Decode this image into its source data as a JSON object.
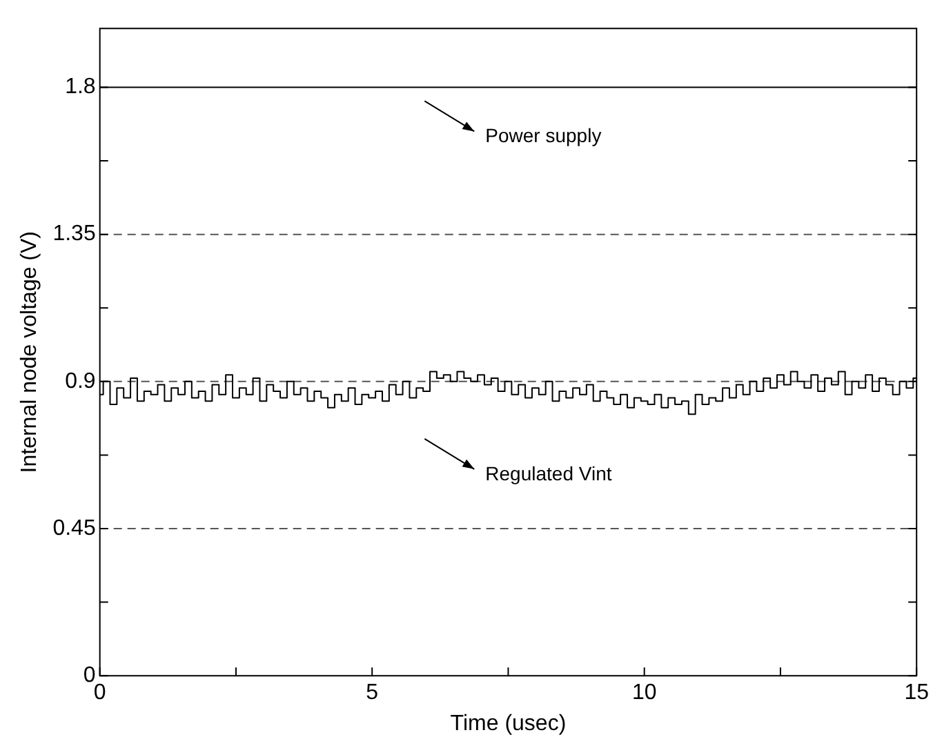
{
  "chart_data": {
    "type": "line",
    "xlabel": "Time (usec)",
    "ylabel": "Internal node voltage (V)",
    "xlim": [
      0,
      15
    ],
    "xticks": [
      0,
      {
        "value": 2.5,
        "label": null
      },
      5,
      {
        "value": 7.5,
        "label": null
      },
      10,
      {
        "value": 12.5,
        "label": null
      },
      15
    ],
    "ylim": [
      0,
      1.98
    ],
    "yticks": [
      0,
      {
        "value": 0.225,
        "label": null
      },
      0.45,
      {
        "value": 0.675,
        "label": null
      },
      0.9,
      {
        "value": 1.125,
        "label": null
      },
      1.35,
      {
        "value": 1.575,
        "label": null
      },
      1.8
    ],
    "grid": false,
    "legend": false,
    "marker": "none",
    "series": [
      {
        "color": "#000000",
        "x": [
          0,
          15
        ],
        "values": [
          1.8,
          1.8
        ]
      },
      {
        "type": "step",
        "color": "#000000",
        "x": [
          0,
          0.125,
          0.25,
          0.375,
          0.5,
          0.625,
          0.75,
          0.875,
          1,
          1.125,
          1.25,
          1.375,
          1.5,
          1.625,
          1.75,
          1.875,
          2,
          2.125,
          2.25,
          2.375,
          2.5,
          2.625,
          2.75,
          2.875,
          3,
          3.125,
          3.25,
          3.375,
          3.5,
          3.625,
          3.75,
          3.875,
          4,
          4.125,
          4.25,
          4.375,
          4.5,
          4.625,
          4.75,
          4.875,
          5,
          5.125,
          5.25,
          5.375,
          5.5,
          5.625,
          5.75,
          5.875,
          6,
          6.125,
          6.25,
          6.375,
          6.5,
          6.625,
          6.75,
          6.875,
          7,
          7.125,
          7.25,
          7.375,
          7.5,
          7.625,
          7.75,
          7.875,
          8,
          8.125,
          8.25,
          8.375,
          8.5,
          8.625,
          8.75,
          8.875,
          9,
          9.125,
          9.25,
          9.375,
          9.5,
          9.625,
          9.75,
          9.875,
          10,
          10.125,
          10.25,
          10.375,
          10.5,
          10.625,
          10.75,
          10.875,
          11,
          11.125,
          11.25,
          11.375,
          11.5,
          11.625,
          11.75,
          11.875,
          12,
          12.125,
          12.25,
          12.375,
          12.5,
          12.625,
          12.75,
          12.875,
          13,
          13.125,
          13.25,
          13.375,
          13.5,
          13.625,
          13.75,
          13.875,
          14,
          14.125,
          14.25,
          14.375,
          14.5,
          14.625,
          14.75,
          14.875,
          15
        ],
        "values": [
          0.86,
          0.9,
          0.83,
          0.88,
          0.85,
          0.91,
          0.84,
          0.87,
          0.86,
          0.89,
          0.84,
          0.88,
          0.86,
          0.9,
          0.85,
          0.87,
          0.84,
          0.89,
          0.86,
          0.92,
          0.85,
          0.88,
          0.86,
          0.91,
          0.84,
          0.89,
          0.87,
          0.85,
          0.9,
          0.86,
          0.88,
          0.84,
          0.87,
          0.85,
          0.82,
          0.86,
          0.84,
          0.88,
          0.83,
          0.86,
          0.85,
          0.87,
          0.84,
          0.89,
          0.86,
          0.9,
          0.85,
          0.88,
          0.87,
          0.93,
          0.91,
          0.92,
          0.9,
          0.93,
          0.91,
          0.9,
          0.92,
          0.89,
          0.91,
          0.87,
          0.9,
          0.86,
          0.89,
          0.85,
          0.88,
          0.86,
          0.9,
          0.84,
          0.87,
          0.85,
          0.88,
          0.86,
          0.89,
          0.84,
          0.87,
          0.85,
          0.83,
          0.86,
          0.82,
          0.85,
          0.84,
          0.83,
          0.86,
          0.82,
          0.85,
          0.83,
          0.84,
          0.8,
          0.86,
          0.83,
          0.85,
          0.84,
          0.88,
          0.85,
          0.89,
          0.86,
          0.9,
          0.87,
          0.91,
          0.88,
          0.92,
          0.89,
          0.93,
          0.9,
          0.88,
          0.92,
          0.87,
          0.91,
          0.89,
          0.93,
          0.86,
          0.9,
          0.88,
          0.92,
          0.87,
          0.91,
          0.89,
          0.86,
          0.9,
          0.88,
          0.91
        ]
      }
    ],
    "ref_lines": [
      {
        "axis": "y",
        "value": 1.35,
        "color": "#555555",
        "line_style": "dashed"
      },
      {
        "axis": "y",
        "value": 0.9,
        "color": "#555555",
        "line_style": "dashed"
      },
      {
        "axis": "y",
        "value": 0.45,
        "color": "#555555",
        "line_style": "dashed"
      }
    ],
    "annotations": [
      "Power supply",
      "Regulated Vint"
    ]
  }
}
